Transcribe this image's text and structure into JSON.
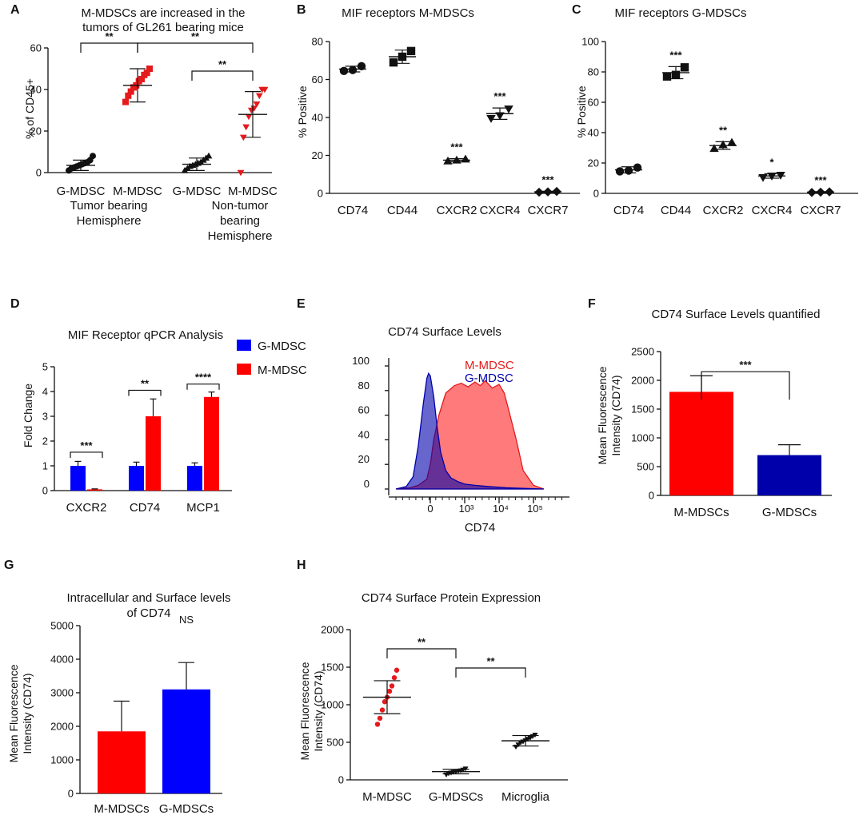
{
  "colors": {
    "red": "#e41a1c",
    "red_bar": "#ff0000",
    "blue": "#0000ff",
    "navy": "#0000aa",
    "black": "#111111",
    "pink": "#ff6b6b",
    "purple": "#6a2a9a"
  },
  "chart_data": [
    {
      "panel": "A",
      "type": "scatter",
      "title": [
        "M-MDSCs are increased in the",
        "tumors of GL261 bearing mice"
      ],
      "ylabel": "% of CD45+",
      "ylim": [
        0,
        60
      ],
      "yticks": [
        0,
        20,
        40,
        60
      ],
      "categories": [
        "G-MDSC",
        "M-MDSC",
        "G-MDSC",
        "M-MDSC"
      ],
      "groups": [
        "Tumor bearing\nHemisphere",
        "Non-tumor\nbearing\nHemisphere"
      ],
      "series": [
        {
          "name": "Tumor G-MDSC",
          "marker": "circle",
          "color": "black",
          "mean": 3.5,
          "sd": 2.5,
          "values": [
            1,
            2,
            2.5,
            3,
            3.5,
            4,
            4.5,
            5,
            6,
            8
          ]
        },
        {
          "name": "Tumor M-MDSC",
          "marker": "square",
          "color": "red",
          "mean": 42,
          "sd": 8,
          "values": [
            34,
            37,
            39,
            41,
            42,
            44,
            45,
            47,
            48,
            50
          ]
        },
        {
          "name": "Non-tumor G-MDSC",
          "marker": "triangle",
          "color": "black",
          "mean": 4,
          "sd": 3,
          "values": [
            1,
            2,
            3,
            3.5,
            4,
            4.5,
            5,
            6,
            7,
            8
          ]
        },
        {
          "name": "Non-tumor M-MDSC",
          "marker": "triangle-down",
          "color": "red",
          "mean": 28,
          "sd": 11,
          "values": [
            0,
            17,
            22,
            27,
            30,
            31,
            33,
            37,
            40,
            40
          ]
        }
      ],
      "significance": [
        "**",
        "**",
        "**"
      ]
    },
    {
      "panel": "B",
      "type": "scatter",
      "title": "MIF receptors M-MDSCs",
      "ylabel": "% Positive",
      "ylim": [
        0,
        80
      ],
      "yticks": [
        0,
        20,
        40,
        60,
        80
      ],
      "categories": [
        "CD74",
        "CD44",
        "CXCR2",
        "CXCR4",
        "CXCR7"
      ],
      "series": [
        {
          "category": "CD74",
          "marker": "circle",
          "mean": 65.5,
          "sd": 1.5,
          "values": [
            64.5,
            65,
            67
          ]
        },
        {
          "category": "CD44",
          "marker": "square",
          "mean": 72,
          "sd": 3.5,
          "values": [
            69,
            72,
            75
          ]
        },
        {
          "category": "CXCR2",
          "marker": "triangle",
          "mean": 17.5,
          "sd": 0.8,
          "values": [
            17,
            17.5,
            18
          ]
        },
        {
          "category": "CXCR4",
          "marker": "triangle-down",
          "mean": 42,
          "sd": 3,
          "values": [
            39.5,
            41,
            44.5
          ]
        },
        {
          "category": "CXCR7",
          "marker": "diamond",
          "mean": 0.8,
          "sd": 0.3,
          "values": [
            0.6,
            0.8,
            1.0
          ]
        }
      ],
      "significance": [
        "",
        "",
        "***",
        "***",
        "***"
      ]
    },
    {
      "panel": "C",
      "type": "scatter",
      "title": "MIF receptors G-MDSCs",
      "ylabel": "% Positive",
      "ylim": [
        0,
        100
      ],
      "yticks": [
        0,
        20,
        40,
        60,
        80,
        100
      ],
      "categories": [
        "CD74",
        "CD44",
        "CXCR2",
        "CXCR4",
        "CXCR7"
      ],
      "series": [
        {
          "category": "CD74",
          "marker": "circle",
          "mean": 15.5,
          "sd": 2,
          "values": [
            14.5,
            15,
            17
          ]
        },
        {
          "category": "CD44",
          "marker": "square",
          "mean": 79.5,
          "sd": 4,
          "values": [
            77,
            78,
            83
          ]
        },
        {
          "category": "CXCR2",
          "marker": "triangle",
          "mean": 31.5,
          "sd": 2.5,
          "values": [
            29.5,
            32,
            33.5
          ]
        },
        {
          "category": "CXCR4",
          "marker": "triangle-down",
          "mean": 11.5,
          "sd": 1.5,
          "values": [
            10.5,
            11.5,
            12
          ]
        },
        {
          "category": "CXCR7",
          "marker": "diamond",
          "mean": 0.8,
          "sd": 0.3,
          "values": [
            0.6,
            0.8,
            1.0
          ]
        }
      ],
      "significance": [
        "",
        "***",
        "**",
        "*",
        "***"
      ]
    },
    {
      "panel": "D",
      "type": "bar",
      "title": "MIF Receptor qPCR Analysis",
      "ylabel": "Fold Change",
      "ylim": [
        0,
        5
      ],
      "yticks": [
        0,
        1,
        2,
        3,
        4,
        5
      ],
      "categories": [
        "CXCR2",
        "CD74",
        "MCP1"
      ],
      "series": [
        {
          "name": "G-MDSC",
          "color": "blue",
          "values": [
            1.0,
            1.0,
            1.0
          ],
          "errors": [
            0.18,
            0.15,
            0.12
          ]
        },
        {
          "name": "M-MDSC",
          "color": "red_bar",
          "values": [
            0.05,
            3.0,
            3.78
          ],
          "errors": [
            0.02,
            0.7,
            0.2
          ]
        }
      ],
      "significance": [
        "***",
        "**",
        "****"
      ]
    },
    {
      "panel": "E",
      "type": "area",
      "title": "CD74 Surface Levels",
      "xlabel": "CD74",
      "xticks": [
        "0",
        "10³",
        "10⁴",
        "10⁵"
      ],
      "yticks": [
        0,
        20,
        40,
        60,
        80,
        100
      ],
      "legend": [
        "M-MDSC",
        "G-MDSC"
      ],
      "series": [
        {
          "name": "M-MDSC",
          "color": "red",
          "x": [
            -1.0,
            -0.6,
            -0.35,
            -0.1,
            0,
            0.1,
            0.25,
            0.45,
            0.7,
            0.9,
            1.1,
            1.3,
            1.45,
            1.6,
            1.8,
            2.0,
            2.15,
            2.3,
            2.5,
            2.7,
            3.0,
            3.3
          ],
          "y": [
            0,
            1,
            3,
            8,
            20,
            40,
            60,
            78,
            84,
            86,
            83,
            87,
            84,
            88,
            82,
            85,
            78,
            62,
            40,
            15,
            3,
            0
          ]
        },
        {
          "name": "G-MDSC",
          "color": "navy",
          "x": [
            -1.0,
            -0.7,
            -0.5,
            -0.35,
            -0.2,
            -0.1,
            -0.05,
            0,
            0.1,
            0.2,
            0.3,
            0.45,
            0.6,
            0.8,
            1.0,
            1.3,
            1.7,
            2.2,
            3.3
          ],
          "y": [
            0,
            2,
            10,
            35,
            70,
            90,
            94,
            92,
            75,
            50,
            30,
            15,
            9,
            6,
            4,
            3,
            2,
            1,
            0
          ]
        }
      ]
    },
    {
      "panel": "F",
      "type": "bar",
      "title": "CD74 Surface Levels quantified",
      "ylabel": [
        "Mean Fluorescence",
        "Intensity (CD74)"
      ],
      "ylim": [
        0,
        2500
      ],
      "yticks": [
        0,
        500,
        1000,
        1500,
        2000,
        2500
      ],
      "categories": [
        "M-MDSCs",
        "G-MDSCs"
      ],
      "values": [
        1800,
        700
      ],
      "errors": [
        280,
        180
      ],
      "colors": [
        "red_bar",
        "navy"
      ],
      "significance": "***"
    },
    {
      "panel": "G",
      "type": "bar",
      "title": [
        "Intracellular and Surface levels",
        "of CD74"
      ],
      "ylabel": [
        "Mean Fluorescence",
        "Intensity (CD74)"
      ],
      "ylim": [
        0,
        5000
      ],
      "yticks": [
        0,
        1000,
        2000,
        3000,
        4000,
        5000
      ],
      "categories": [
        "M-MDSCs",
        "G-MDSCs"
      ],
      "values": [
        1850,
        3100
      ],
      "errors": [
        900,
        800
      ],
      "colors": [
        "red_bar",
        "blue"
      ],
      "significance": "NS"
    },
    {
      "panel": "H",
      "type": "scatter",
      "title": "CD74 Surface Protein Expression",
      "ylabel": [
        "Mean Fluorescence",
        "Intensity (CD74)"
      ],
      "ylim": [
        0,
        2000
      ],
      "yticks": [
        0,
        500,
        1000,
        1500,
        2000
      ],
      "categories": [
        "M-MDSC",
        "G-MDSCs",
        "Microglia"
      ],
      "series": [
        {
          "category": "M-MDSC",
          "marker": "circle",
          "color": "red",
          "mean": 1100,
          "sd": 220,
          "values": [
            740,
            820,
            930,
            1040,
            1100,
            1180,
            1250,
            1360,
            1460
          ]
        },
        {
          "category": "G-MDSCs",
          "marker": "triangle-down",
          "color": "black",
          "mean": 110,
          "sd": 30,
          "values": [
            70,
            85,
            95,
            105,
            110,
            118,
            125,
            135,
            150
          ]
        },
        {
          "category": "Microglia",
          "marker": "triangle-down",
          "color": "black",
          "mean": 520,
          "sd": 70,
          "values": [
            440,
            470,
            495,
            510,
            525,
            545,
            560,
            580,
            600
          ]
        }
      ],
      "significance": [
        "**",
        "**"
      ]
    }
  ]
}
